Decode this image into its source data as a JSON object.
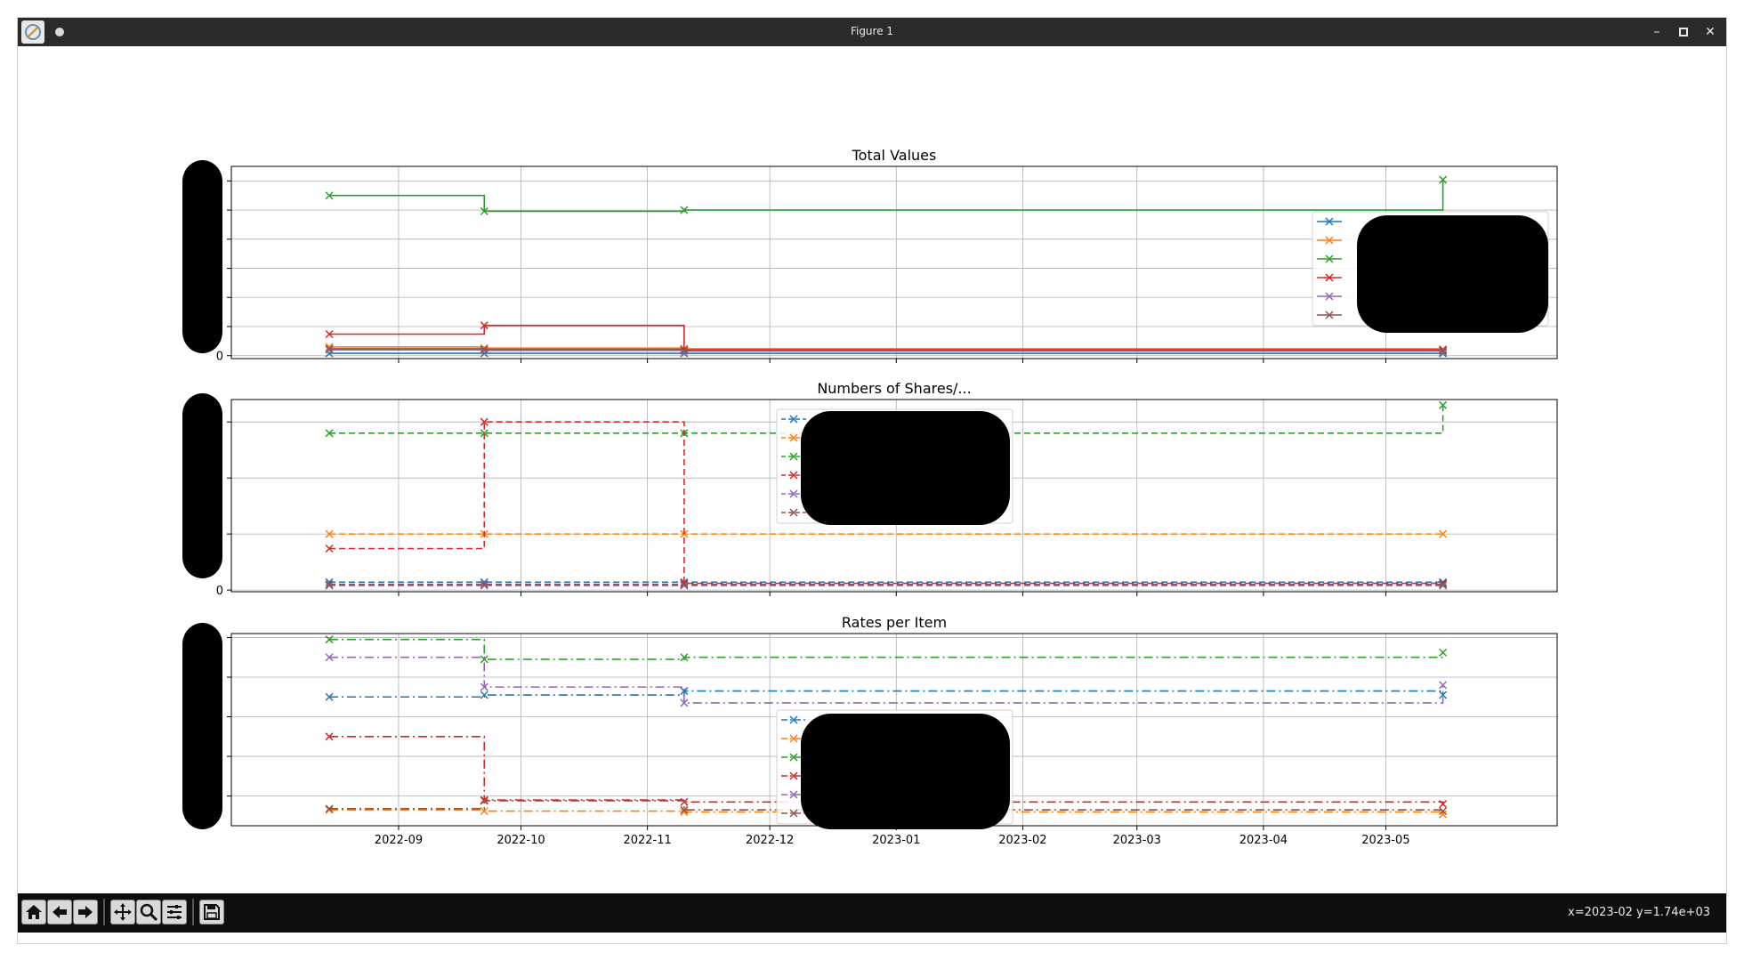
{
  "window": {
    "title": "Figure 1"
  },
  "status": {
    "coords": "x=2023-02 y=1.74e+03"
  },
  "toolbar": {
    "buttons": [
      "home-icon",
      "back-arrow-icon",
      "forward-arrow-icon",
      "pan-icon",
      "zoom-icon",
      "configure-subplots-icon",
      "save-icon"
    ]
  },
  "colors": [
    "#1f77b4",
    "#ff7f0e",
    "#2ca02c",
    "#d62728",
    "#9467bd",
    "#8c564b"
  ],
  "chart_data": [
    {
      "type": "line",
      "title": "Total Values",
      "linestyle": "solid",
      "step": "post",
      "marker": "x",
      "grid": true,
      "legend": "upper right",
      "xlim": [
        "2022-07-22",
        "2023-06-12"
      ],
      "ylim": [
        -5,
        325
      ],
      "yticks": [
        0,
        50,
        100,
        150,
        200,
        250,
        300
      ],
      "yticklabels": [
        "0",
        "",
        "",
        "",
        "",
        "",
        ""
      ],
      "xticks": [
        "2022-09-01",
        "2022-10-01",
        "2022-11-01",
        "2022-12-01",
        "2023-01-01",
        "2023-02-01",
        "2023-03-01",
        "2023-04-01",
        "2023-05-01"
      ],
      "xticklabels": [],
      "series": [
        {
          "x": [
            "2022-08-15",
            "2022-09-22",
            "2022-11-10",
            "2023-05-15"
          ],
          "values": [
            4,
            4,
            4,
            4
          ]
        },
        {
          "x": [
            "2022-08-15",
            "2022-09-22",
            "2022-11-10",
            "2023-05-15"
          ],
          "values": [
            15,
            13,
            12,
            11
          ]
        },
        {
          "x": [
            "2022-08-15",
            "2022-09-22",
            "2022-11-10",
            "2023-05-15"
          ],
          "values": [
            275,
            248,
            250,
            302
          ]
        },
        {
          "x": [
            "2022-08-15",
            "2022-09-22",
            "2022-11-10",
            "2023-05-15"
          ],
          "values": [
            37,
            52,
            10,
            10
          ]
        },
        {
          "x": [
            "2022-08-15",
            "2022-09-22",
            "2022-11-10",
            "2023-05-15"
          ],
          "values": [
            10,
            9,
            8,
            6
          ]
        },
        {
          "x": [
            "2022-08-15",
            "2022-09-22",
            "2022-11-10",
            "2023-05-15"
          ],
          "values": [
            12,
            11,
            9,
            8
          ]
        }
      ]
    },
    {
      "type": "line",
      "title": "Numbers of Shares/...",
      "linestyle": "dashed",
      "step": "post",
      "marker": "x",
      "grid": true,
      "legend": "upper center",
      "xlim": [
        "2022-07-22",
        "2023-06-12"
      ],
      "ylim": [
        -3,
        340
      ],
      "yticks": [
        0,
        100,
        200,
        300
      ],
      "yticklabels": [
        "0",
        "",
        "",
        ""
      ],
      "xticks": [
        "2022-09-01",
        "2022-10-01",
        "2022-11-01",
        "2022-12-01",
        "2023-01-01",
        "2023-02-01",
        "2023-03-01",
        "2023-04-01",
        "2023-05-01"
      ],
      "xticklabels": [],
      "series": [
        {
          "x": [
            "2022-08-15",
            "2022-09-22",
            "2022-11-10",
            "2023-05-15"
          ],
          "values": [
            14,
            14,
            14,
            14
          ]
        },
        {
          "x": [
            "2022-08-15",
            "2022-09-22",
            "2022-11-10",
            "2023-05-15"
          ],
          "values": [
            100,
            100,
            100,
            100
          ]
        },
        {
          "x": [
            "2022-08-15",
            "2022-09-22",
            "2022-11-10",
            "2023-05-15"
          ],
          "values": [
            280,
            280,
            280,
            330
          ]
        },
        {
          "x": [
            "2022-08-15",
            "2022-09-22",
            "2022-11-10",
            "2023-05-15"
          ],
          "values": [
            74,
            300,
            12,
            12
          ]
        },
        {
          "x": [
            "2022-08-15",
            "2022-09-22",
            "2022-11-10",
            "2023-05-15"
          ],
          "values": [
            8,
            8,
            8,
            8
          ]
        },
        {
          "x": [
            "2022-08-15",
            "2022-09-22",
            "2022-11-10",
            "2023-05-15"
          ],
          "values": [
            10,
            10,
            10,
            10
          ]
        }
      ]
    },
    {
      "type": "line",
      "title": "Rates per Item",
      "linestyle": "dashdot",
      "step": "post",
      "marker": "x",
      "grid": true,
      "legend": "lower center",
      "xlim": [
        "2022-07-22",
        "2023-06-12"
      ],
      "ylim": [
        -5,
        480
      ],
      "yticks": [
        70,
        170,
        270,
        370,
        470
      ],
      "yticklabels": [
        "",
        "",
        "",
        "",
        ""
      ],
      "xticks": [
        "2022-09-01",
        "2022-10-01",
        "2022-11-01",
        "2022-12-01",
        "2023-01-01",
        "2023-02-01",
        "2023-03-01",
        "2023-04-01",
        "2023-05-01"
      ],
      "xticklabels": [
        "2022-09",
        "2022-10",
        "2022-11",
        "2022-12",
        "2023-01",
        "2023-02",
        "2023-03",
        "2023-04",
        "2023-05"
      ],
      "series": [
        {
          "x": [
            "2022-08-15",
            "2022-09-22",
            "2022-11-10",
            "2023-05-15"
          ],
          "values": [
            320,
            325,
            335,
            325
          ]
        },
        {
          "x": [
            "2022-08-15",
            "2022-09-22",
            "2022-11-10",
            "2023-05-15"
          ],
          "values": [
            35,
            32,
            30,
            24
          ]
        },
        {
          "x": [
            "2022-08-15",
            "2022-09-22",
            "2022-11-10",
            "2023-05-15"
          ],
          "values": [
            465,
            415,
            420,
            432
          ]
        },
        {
          "x": [
            "2022-08-15",
            "2022-09-22",
            "2022-11-10",
            "2023-05-15"
          ],
          "values": [
            220,
            60,
            55,
            50
          ]
        },
        {
          "x": [
            "2022-08-15",
            "2022-09-22",
            "2022-11-10",
            "2023-05-15"
          ],
          "values": [
            420,
            345,
            305,
            350
          ]
        },
        {
          "x": [
            "2022-08-15",
            "2022-09-22",
            "2022-11-10",
            "2023-05-15"
          ],
          "values": [
            38,
            58,
            35,
            32
          ]
        }
      ]
    }
  ]
}
